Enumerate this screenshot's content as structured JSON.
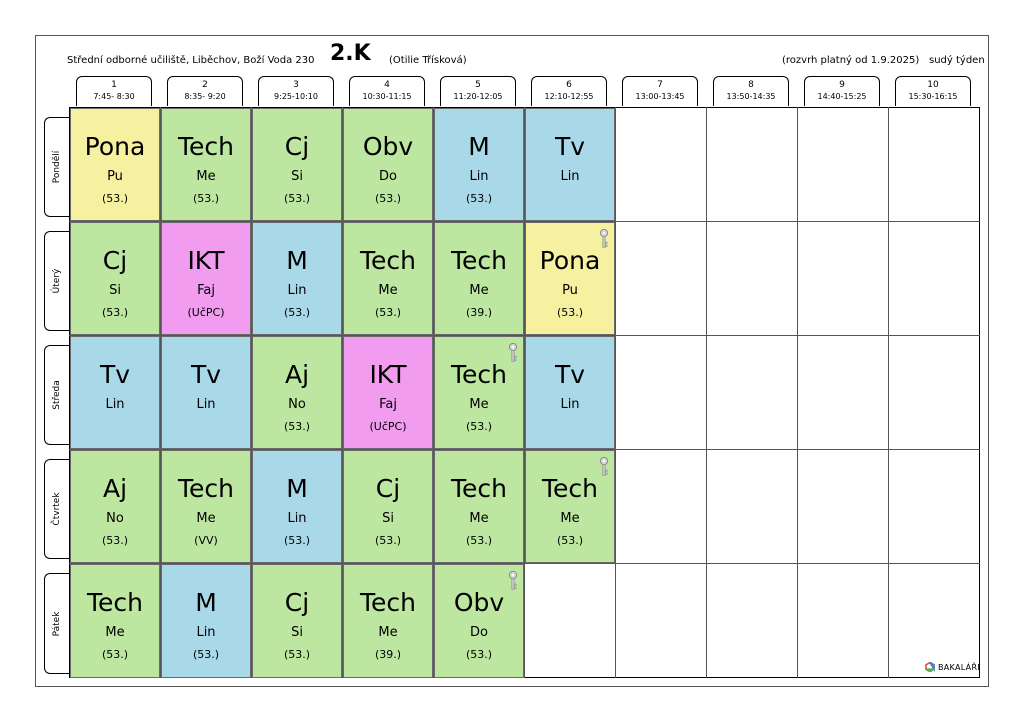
{
  "header": {
    "school": "Střední odborné učiliště, Liběchov, Boží Voda 230",
    "class_name": "2.K",
    "teacher": "(Otilie Třísková)",
    "valid_from": "(rozvrh platný od 1.9.2025)",
    "week_type": "sudý týden"
  },
  "periods": [
    {
      "num": "1",
      "time": "7:45- 8:30"
    },
    {
      "num": "2",
      "time": "8:35- 9:20"
    },
    {
      "num": "3",
      "time": "9:25-10:10"
    },
    {
      "num": "4",
      "time": "10:30-11:15"
    },
    {
      "num": "5",
      "time": "11:20-12:05"
    },
    {
      "num": "6",
      "time": "12:10-12:55"
    },
    {
      "num": "7",
      "time": "13:00-13:45"
    },
    {
      "num": "8",
      "time": "13:50-14:35"
    },
    {
      "num": "9",
      "time": "14:40-15:25"
    },
    {
      "num": "10",
      "time": "15:30-16:15"
    }
  ],
  "colors": {
    "tech": "#bde6a1",
    "blue": "#a9d9e8",
    "yellow": "#f5f1a0",
    "pink": "#f29cf0",
    "border": "#6a6a6a"
  },
  "days": [
    {
      "name": "Pondělí",
      "lessons": [
        {
          "subject": "Pona",
          "teacher": "Pu",
          "room": "(53.)",
          "color": "yellow",
          "key": false
        },
        {
          "subject": "Tech",
          "teacher": "Me",
          "room": "(53.)",
          "color": "tech",
          "key": false
        },
        {
          "subject": "Cj",
          "teacher": "Si",
          "room": "(53.)",
          "color": "tech",
          "key": false
        },
        {
          "subject": "Obv",
          "teacher": "Do",
          "room": "(53.)",
          "color": "tech",
          "key": false
        },
        {
          "subject": "M",
          "teacher": "Lin",
          "room": "(53.)",
          "color": "blue",
          "key": false
        },
        {
          "subject": "Tv",
          "teacher": "Lin",
          "room": "",
          "color": "blue",
          "key": false
        }
      ]
    },
    {
      "name": "Úterý",
      "lessons": [
        {
          "subject": "Cj",
          "teacher": "Si",
          "room": "(53.)",
          "color": "tech",
          "key": false
        },
        {
          "subject": "IKT",
          "teacher": "Faj",
          "room": "(UčPC)",
          "color": "pink",
          "key": false
        },
        {
          "subject": "M",
          "teacher": "Lin",
          "room": "(53.)",
          "color": "blue",
          "key": false
        },
        {
          "subject": "Tech",
          "teacher": "Me",
          "room": "(53.)",
          "color": "tech",
          "key": false
        },
        {
          "subject": "Tech",
          "teacher": "Me",
          "room": "(39.)",
          "color": "tech",
          "key": false
        },
        {
          "subject": "Pona",
          "teacher": "Pu",
          "room": "(53.)",
          "color": "yellow",
          "key": true
        }
      ]
    },
    {
      "name": "Středa",
      "lessons": [
        {
          "subject": "Tv",
          "teacher": "Lin",
          "room": "",
          "color": "blue",
          "key": false
        },
        {
          "subject": "Tv",
          "teacher": "Lin",
          "room": "",
          "color": "blue",
          "key": false
        },
        {
          "subject": "Aj",
          "teacher": "No",
          "room": "(53.)",
          "color": "tech",
          "key": false
        },
        {
          "subject": "IKT",
          "teacher": "Faj",
          "room": "(UčPC)",
          "color": "pink",
          "key": false
        },
        {
          "subject": "Tech",
          "teacher": "Me",
          "room": "(53.)",
          "color": "tech",
          "key": true
        },
        {
          "subject": "Tv",
          "teacher": "Lin",
          "room": "",
          "color": "blue",
          "key": false
        }
      ]
    },
    {
      "name": "Čtvrtek",
      "lessons": [
        {
          "subject": "Aj",
          "teacher": "No",
          "room": "(53.)",
          "color": "tech",
          "key": false
        },
        {
          "subject": "Tech",
          "teacher": "Me",
          "room": "(VV)",
          "color": "tech",
          "key": false
        },
        {
          "subject": "M",
          "teacher": "Lin",
          "room": "(53.)",
          "color": "blue",
          "key": false
        },
        {
          "subject": "Cj",
          "teacher": "Si",
          "room": "(53.)",
          "color": "tech",
          "key": false
        },
        {
          "subject": "Tech",
          "teacher": "Me",
          "room": "(53.)",
          "color": "tech",
          "key": false
        },
        {
          "subject": "Tech",
          "teacher": "Me",
          "room": "(53.)",
          "color": "tech",
          "key": true
        }
      ]
    },
    {
      "name": "Pátek",
      "lessons": [
        {
          "subject": "Tech",
          "teacher": "Me",
          "room": "(53.)",
          "color": "tech",
          "key": false
        },
        {
          "subject": "M",
          "teacher": "Lin",
          "room": "(53.)",
          "color": "blue",
          "key": false
        },
        {
          "subject": "Cj",
          "teacher": "Si",
          "room": "(53.)",
          "color": "tech",
          "key": false
        },
        {
          "subject": "Tech",
          "teacher": "Me",
          "room": "(39.)",
          "color": "tech",
          "key": false
        },
        {
          "subject": "Obv",
          "teacher": "Do",
          "room": "(53.)",
          "color": "tech",
          "key": true
        }
      ]
    }
  ],
  "footer": {
    "logo_icon": "bakalari-logo-icon",
    "logo_text": "BAKALÁŘI"
  }
}
